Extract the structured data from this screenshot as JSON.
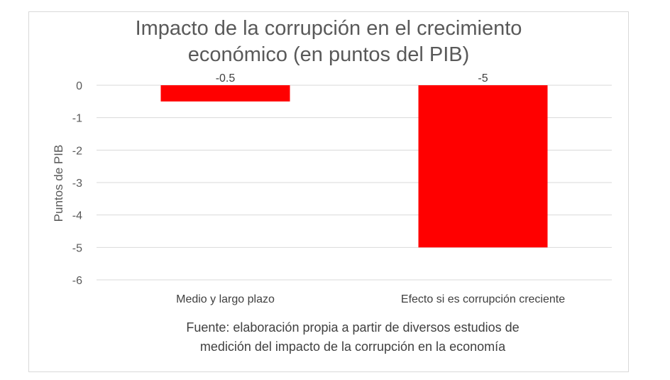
{
  "chart_data": {
    "type": "bar",
    "title_lines": [
      "Impacto de la corrupción en el crecimiento",
      "económico (en puntos del PIB)"
    ],
    "ylabel": "Puntos de PIB",
    "xlabel": "",
    "categories": [
      "Medio y largo plazo",
      "Efecto si es corrupción creciente"
    ],
    "values": [
      -0.5,
      -5
    ],
    "data_labels": [
      "-0.5",
      "-5"
    ],
    "ylim": [
      -6,
      0
    ],
    "yticks": [
      0,
      -1,
      -2,
      -3,
      -4,
      -5,
      -6
    ],
    "grid": true,
    "legend": "none",
    "bar_color": "#ff0000",
    "footnote_lines": [
      "Fuente: elaboración propia a partir de diversos estudios de",
      "medición del impacto de la corrupción en la economía"
    ]
  }
}
